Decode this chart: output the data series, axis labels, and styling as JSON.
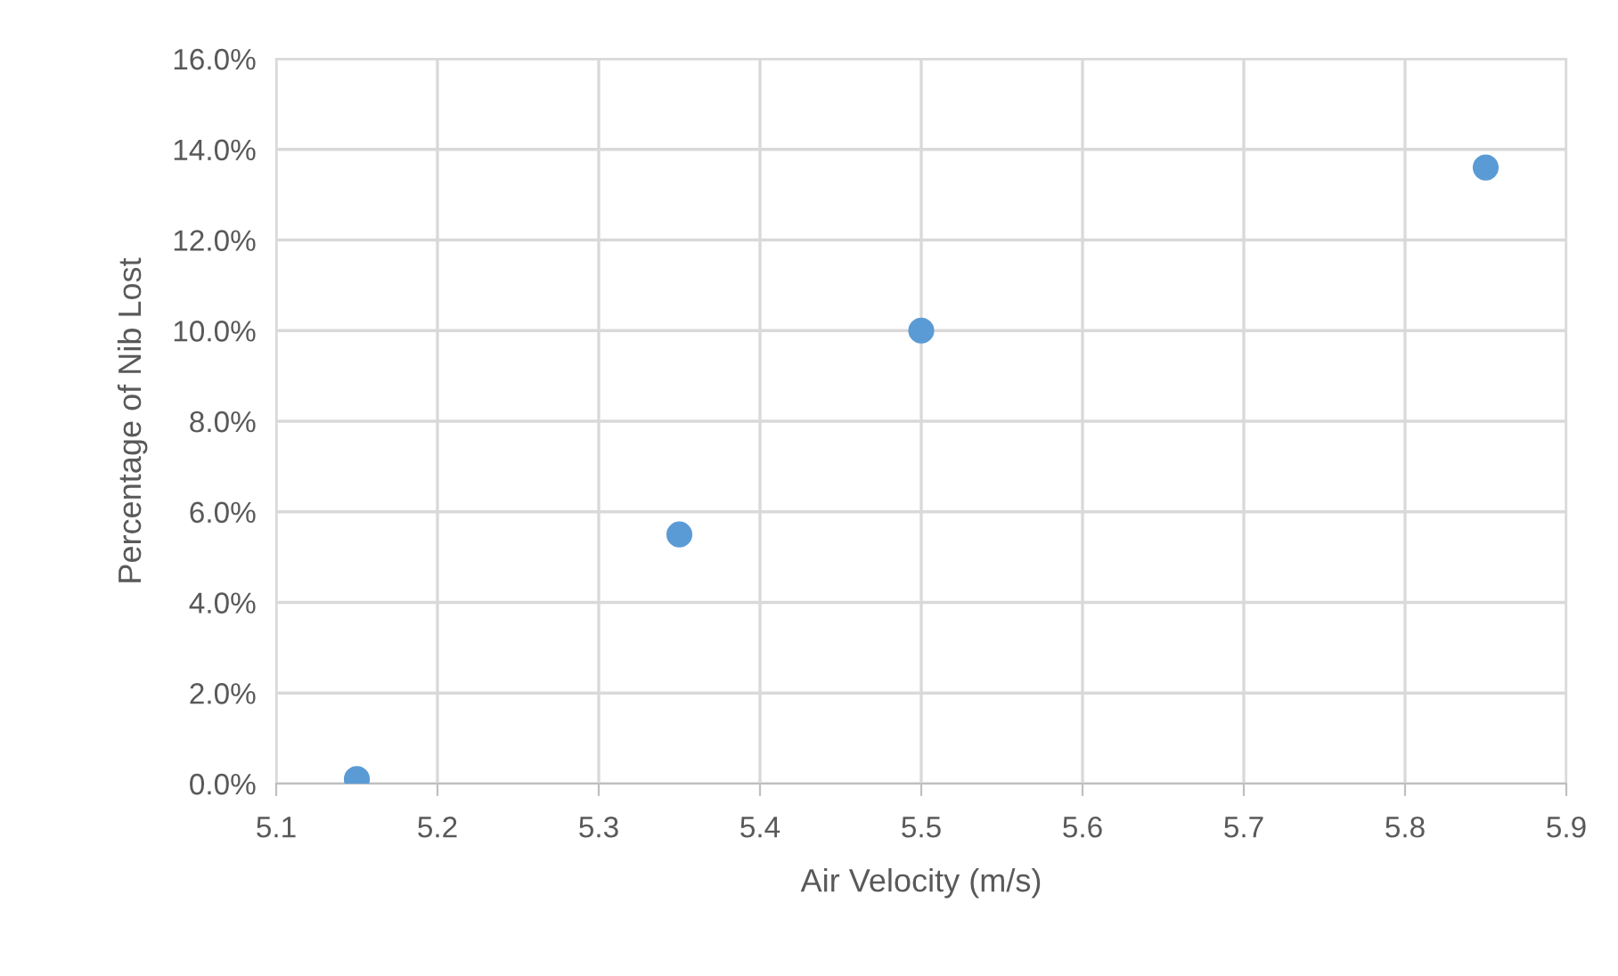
{
  "chart_data": {
    "type": "scatter",
    "xlabel": "Air Velocity (m/s)",
    "ylabel": "Percentage of Nib Lost",
    "series": [
      {
        "color": "#5b9bd5",
        "x": [
          5.15,
          5.35,
          5.5,
          5.85
        ],
        "values": [
          0.1,
          5.5,
          10.0,
          13.6
        ]
      }
    ],
    "xlim": [
      5.1,
      5.9
    ],
    "xticks": [
      5.1,
      5.2,
      5.3,
      5.4,
      5.5,
      5.6,
      5.7,
      5.8,
      5.9
    ],
    "ylim": [
      0,
      16
    ],
    "yticks": [
      {
        "value": 0,
        "label": "0.0%"
      },
      {
        "value": 2,
        "label": "2.0%"
      },
      {
        "value": 4,
        "label": "4.0%"
      },
      {
        "value": 6,
        "label": "6.0%"
      },
      {
        "value": 8,
        "label": "8.0%"
      },
      {
        "value": 10,
        "label": "10.0%"
      },
      {
        "value": 12,
        "label": "12.0%"
      },
      {
        "value": 14,
        "label": "14.0%"
      },
      {
        "value": 16,
        "label": "16.0%"
      }
    ],
    "grid": true,
    "marker": "circle"
  }
}
